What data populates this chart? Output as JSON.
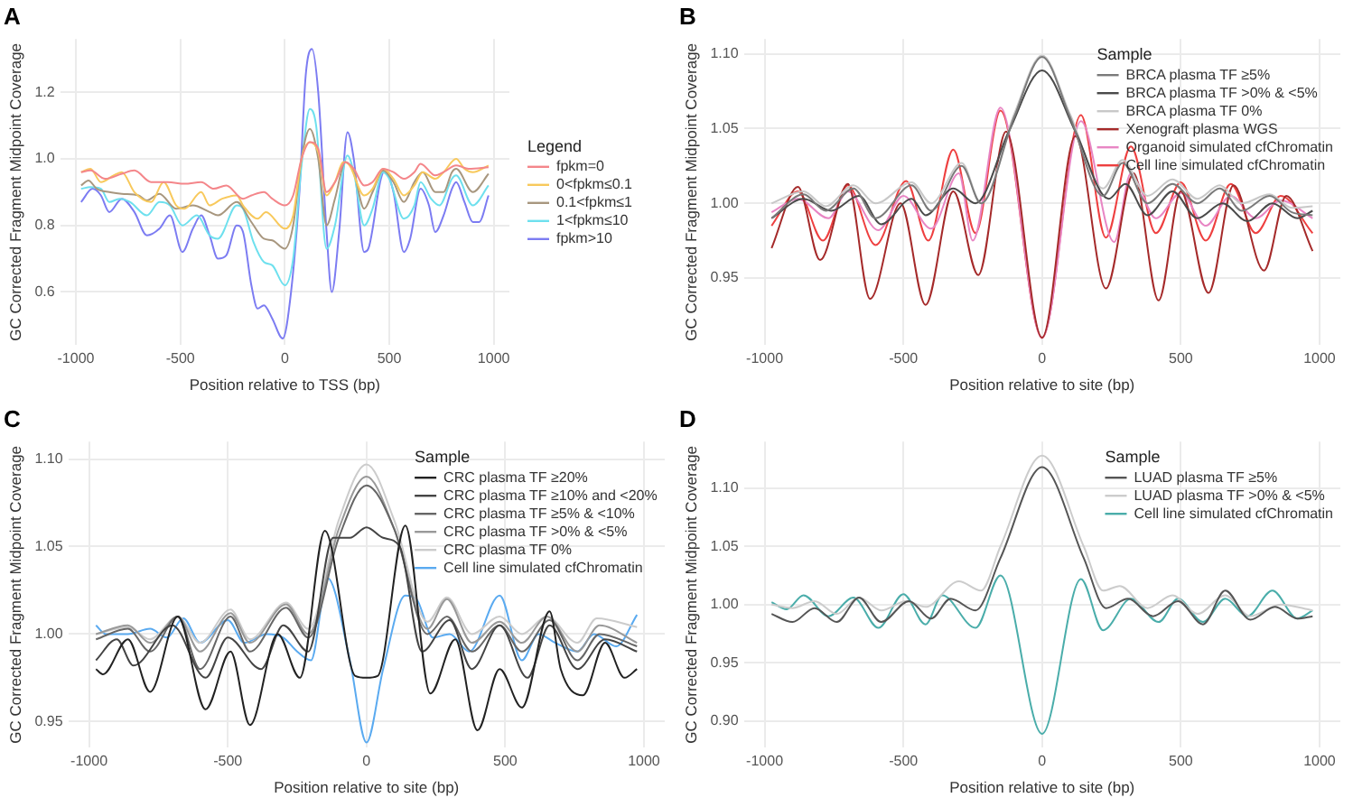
{
  "chart_data": [
    {
      "type": "line",
      "title": "A",
      "xlabel": "Position relative to TSS (bp)",
      "ylabel": "GC Corrected Fragment Midpoint Coverage",
      "legend_title": "Legend",
      "legend": "right",
      "grid": true,
      "marker": "none",
      "line_style": "solid",
      "xlim": [
        -1075,
        1075
      ],
      "xticks": [
        -1000,
        -500,
        0,
        500,
        1000
      ],
      "ylim": [
        0.44,
        1.36
      ],
      "yticks": [
        0.6,
        0.8,
        {
          "value": 1,
          "label": "1.0"
        },
        1.2
      ],
      "series": [
        {
          "name": "fpkm=0",
          "color": "#f4868a",
          "x": [
            -975,
            -930,
            -860,
            -780,
            -720,
            -640,
            -560,
            -480,
            -400,
            -340,
            -280,
            -200,
            -160,
            -100,
            -60,
            0,
            40,
            80,
            120,
            160,
            200,
            240,
            290,
            330,
            380,
            420,
            470,
            520,
            570,
            620,
            650,
            720,
            760,
            820,
            880,
            975
          ],
          "values": [
            0.96,
            0.965,
            0.94,
            0.955,
            0.965,
            0.93,
            0.93,
            0.925,
            0.93,
            0.91,
            0.92,
            0.88,
            0.89,
            0.9,
            0.88,
            0.86,
            0.89,
            1.0,
            1.05,
            1.03,
            0.9,
            0.93,
            0.99,
            0.97,
            0.92,
            0.93,
            0.97,
            0.96,
            0.94,
            0.96,
            0.985,
            0.95,
            0.96,
            0.98,
            0.97,
            0.975
          ]
        },
        {
          "name": "0<fpkm≤0.1",
          "color": "#f8c95c",
          "x": [
            -975,
            -930,
            -880,
            -820,
            -780,
            -720,
            -640,
            -580,
            -520,
            -480,
            -400,
            -360,
            -300,
            -230,
            -200,
            -130,
            -90,
            0,
            40,
            80,
            120,
            160,
            200,
            240,
            280,
            310,
            380,
            420,
            470,
            520,
            570,
            620,
            660,
            720,
            760,
            820,
            860,
            900,
            975
          ],
          "values": [
            0.96,
            0.97,
            0.93,
            0.95,
            0.96,
            0.9,
            0.87,
            0.93,
            0.86,
            0.85,
            0.9,
            0.86,
            0.88,
            0.89,
            0.86,
            0.82,
            0.84,
            0.79,
            0.83,
            1.0,
            1.05,
            1.02,
            0.89,
            0.93,
            0.99,
            0.98,
            0.89,
            0.91,
            0.97,
            0.94,
            0.89,
            0.92,
            0.96,
            0.94,
            0.96,
            1.0,
            0.97,
            0.96,
            0.98
          ]
        },
        {
          "name": "0.1<fpkm≤1",
          "color": "#a8977f",
          "x": [
            -975,
            -940,
            -900,
            -840,
            -780,
            -700,
            -660,
            -600,
            -520,
            -440,
            -360,
            -320,
            -230,
            -160,
            -100,
            -60,
            0,
            40,
            80,
            120,
            160,
            200,
            240,
            290,
            330,
            380,
            420,
            470,
            520,
            570,
            620,
            660,
            720,
            760,
            800,
            820,
            900,
            975
          ],
          "values": [
            0.92,
            0.935,
            0.91,
            0.9,
            0.895,
            0.89,
            0.875,
            0.895,
            0.85,
            0.86,
            0.84,
            0.83,
            0.87,
            0.81,
            0.76,
            0.755,
            0.73,
            0.8,
            1.0,
            1.09,
            1.0,
            0.8,
            0.88,
            0.99,
            0.96,
            0.85,
            0.9,
            0.965,
            0.93,
            0.87,
            0.93,
            0.96,
            0.9,
            0.9,
            0.96,
            0.97,
            0.9,
            0.955
          ]
        },
        {
          "name": "1<fpkm≤10",
          "color": "#6ee0ee",
          "x": [
            -975,
            -930,
            -880,
            -840,
            -790,
            -740,
            -660,
            -600,
            -550,
            -490,
            -420,
            -360,
            -320,
            -230,
            -200,
            -150,
            -100,
            -60,
            0,
            40,
            80,
            120,
            150,
            200,
            240,
            300,
            330,
            380,
            420,
            470,
            500,
            570,
            620,
            650,
            700,
            740,
            800,
            820,
            900,
            975
          ],
          "values": [
            0.91,
            0.915,
            0.91,
            0.87,
            0.88,
            0.87,
            0.83,
            0.87,
            0.86,
            0.8,
            0.83,
            0.77,
            0.76,
            0.86,
            0.85,
            0.75,
            0.69,
            0.68,
            0.62,
            0.7,
            0.98,
            1.15,
            1.1,
            0.73,
            0.8,
            1.01,
            0.96,
            0.8,
            0.85,
            0.96,
            0.94,
            0.82,
            0.86,
            0.93,
            0.88,
            0.86,
            0.94,
            0.95,
            0.86,
            0.92
          ]
        },
        {
          "name": "fpkm>10",
          "color": "#7c7cf2",
          "x": [
            -975,
            -920,
            -880,
            -840,
            -780,
            -720,
            -660,
            -600,
            -550,
            -490,
            -440,
            -400,
            -360,
            -320,
            -280,
            -230,
            -200,
            -160,
            -130,
            -100,
            -60,
            -10,
            30,
            70,
            100,
            130,
            160,
            200,
            225,
            260,
            300,
            330,
            380,
            400,
            460,
            480,
            520,
            570,
            600,
            650,
            690,
            720,
            760,
            800,
            820,
            860,
            900,
            930,
            975
          ],
          "values": [
            0.87,
            0.91,
            0.89,
            0.84,
            0.88,
            0.84,
            0.77,
            0.79,
            0.83,
            0.72,
            0.79,
            0.83,
            0.77,
            0.7,
            0.71,
            0.8,
            0.78,
            0.62,
            0.55,
            0.56,
            0.52,
            0.46,
            0.6,
            0.9,
            1.25,
            1.33,
            1.2,
            0.78,
            0.6,
            0.78,
            1.08,
            1.0,
            0.72,
            0.73,
            0.94,
            0.965,
            0.9,
            0.72,
            0.76,
            0.91,
            0.86,
            0.78,
            0.83,
            0.91,
            0.93,
            0.87,
            0.81,
            0.81,
            0.89
          ]
        }
      ]
    },
    {
      "type": "line",
      "title": "B",
      "xlabel": "Position relative to site (bp)",
      "ylabel": "GC Corrected Fragment Midpoint Coverage",
      "legend_title": "Sample",
      "legend": "top right",
      "grid": true,
      "marker": "none",
      "line_style": "solid",
      "xlim": [
        -1075,
        1075
      ],
      "xticks": [
        -1000,
        -500,
        0,
        500,
        1000
      ],
      "ylim": [
        0.905,
        1.11
      ],
      "yticks": [
        0.95,
        {
          "value": 1,
          "label": "1.00"
        },
        1.05,
        {
          "value": 1.1,
          "label": "1.10"
        }
      ],
      "series": [
        {
          "name": "BRCA plasma TF ≥5%",
          "color": "#7a7a7a",
          "x": [
            -975,
            -860,
            -780,
            -680,
            -600,
            -470,
            -400,
            -290,
            -220,
            -100,
            0,
            100,
            220,
            290,
            380,
            470,
            560,
            640,
            720,
            820,
            900,
            975
          ],
          "values": [
            0.99,
            1.006,
            0.995,
            1.01,
            0.99,
            1.012,
            0.995,
            1.025,
            1.0,
            1.058,
            1.098,
            1.058,
            1.005,
            1.027,
            1.0,
            1.013,
            1.0,
            1.01,
            0.995,
            1.005,
            0.994,
            0.992
          ]
        },
        {
          "name": "BRCA plasma TF >0% & <5%",
          "color": "#4a4a4a",
          "x": [
            -975,
            -860,
            -760,
            -660,
            -580,
            -470,
            -420,
            -320,
            -240,
            -120,
            0,
            120,
            240,
            300,
            380,
            470,
            560,
            650,
            740,
            830,
            920,
            975
          ],
          "values": [
            0.99,
            1.003,
            0.995,
            1.005,
            0.986,
            1.003,
            0.992,
            1.01,
            1.0,
            1.048,
            1.089,
            1.048,
            1.003,
            1.013,
            0.992,
            1.008,
            0.99,
            1.0,
            0.988,
            1.0,
            0.99,
            0.995
          ]
        },
        {
          "name": "BRCA plasma TF 0%",
          "color": "#c8c8c8",
          "x": [
            -975,
            -860,
            -780,
            -680,
            -600,
            -470,
            -400,
            -290,
            -220,
            -100,
            0,
            100,
            220,
            290,
            380,
            470,
            560,
            640,
            720,
            820,
            900,
            975
          ],
          "values": [
            1.0,
            1.008,
            0.998,
            1.012,
            1.0,
            1.014,
            1.0,
            1.027,
            1.0,
            1.06,
            1.099,
            1.06,
            1.01,
            1.029,
            1.005,
            1.016,
            1.003,
            1.012,
            1.0,
            1.006,
            0.997,
            0.998
          ]
        },
        {
          "name": "Xenograft plasma WGS",
          "color": "#a52a2a",
          "x": [
            -975,
            -880,
            -800,
            -700,
            -620,
            -510,
            -420,
            -320,
            -230,
            -130,
            0,
            120,
            230,
            330,
            420,
            500,
            600,
            690,
            800,
            880,
            975
          ],
          "values": [
            0.97,
            1.011,
            0.962,
            1.013,
            0.936,
            1.0,
            0.932,
            1.008,
            0.952,
            1.048,
            0.91,
            1.045,
            0.943,
            1.02,
            0.935,
            1.008,
            0.94,
            1.012,
            0.955,
            1.005,
            0.968
          ]
        },
        {
          "name": "Organoid simulated cfChromatin",
          "color": "#e886c4",
          "x": [
            -975,
            -880,
            -770,
            -700,
            -590,
            -500,
            -400,
            -300,
            -250,
            -150,
            0,
            140,
            260,
            320,
            410,
            500,
            590,
            680,
            770,
            860,
            975
          ],
          "values": [
            0.994,
            1.003,
            0.99,
            1.008,
            0.982,
            1.005,
            0.983,
            1.02,
            0.975,
            1.064,
            0.91,
            1.055,
            0.974,
            1.02,
            0.99,
            1.007,
            0.985,
            1.005,
            0.99,
            1.002,
            0.99
          ]
        },
        {
          "name": "Cell line simulated cfChromatin",
          "color": "#ee4040",
          "x": [
            -975,
            -880,
            -790,
            -700,
            -600,
            -490,
            -410,
            -320,
            -240,
            -150,
            0,
            140,
            230,
            320,
            410,
            500,
            590,
            680,
            770,
            860,
            975
          ],
          "values": [
            0.985,
            1.008,
            0.975,
            1.012,
            0.972,
            1.015,
            0.975,
            1.036,
            0.98,
            1.062,
            0.91,
            1.059,
            0.977,
            1.038,
            0.98,
            1.014,
            0.975,
            1.013,
            0.98,
            1.005,
            0.98
          ]
        }
      ]
    },
    {
      "type": "line",
      "title": "C",
      "xlabel": "Position relative to site (bp)",
      "ylabel": "GC Corrected Fragment Midpoint Coverage",
      "legend_title": "Sample",
      "legend": "top right",
      "grid": true,
      "marker": "none",
      "line_style": "solid",
      "xlim": [
        -1075,
        1075
      ],
      "xticks": [
        -1000,
        -500,
        0,
        500,
        1000
      ],
      "ylim": [
        0.935,
        1.11
      ],
      "yticks": [
        0.95,
        {
          "value": 1,
          "label": "1.00"
        },
        1.05,
        {
          "value": 1.1,
          "label": "1.10"
        }
      ],
      "series": [
        {
          "name": "CRC plasma TF ≥20%",
          "color": "#222222",
          "x": [
            -975,
            -950,
            -860,
            -780,
            -680,
            -580,
            -490,
            -420,
            -320,
            -240,
            -150,
            -40,
            0,
            40,
            140,
            230,
            320,
            400,
            480,
            560,
            660,
            700,
            780,
            860,
            930,
            975
          ],
          "values": [
            0.98,
            0.977,
            0.997,
            0.967,
            1.01,
            0.957,
            0.99,
            0.948,
            1.0,
            0.975,
            1.059,
            0.976,
            0.975,
            0.976,
            1.062,
            0.966,
            0.997,
            0.945,
            0.98,
            0.958,
            1.013,
            0.98,
            0.965,
            0.995,
            0.975,
            0.98
          ]
        },
        {
          "name": "CRC plasma TF ≥10% and <20%",
          "color": "#444444",
          "x": [
            -975,
            -900,
            -840,
            -700,
            -580,
            -500,
            -380,
            -300,
            -210,
            -120,
            -60,
            0,
            60,
            120,
            200,
            300,
            380,
            480,
            580,
            660,
            760,
            860,
            975
          ],
          "values": [
            0.985,
            0.997,
            0.982,
            1.005,
            0.975,
            0.998,
            0.98,
            1.005,
            0.99,
            1.055,
            1.055,
            1.061,
            1.055,
            1.05,
            0.99,
            1.008,
            0.98,
            1.005,
            0.975,
            1.005,
            0.98,
            0.997,
            0.99
          ]
        },
        {
          "name": "CRC plasma TF ≥5% & <10%",
          "color": "#666666",
          "x": [
            -975,
            -860,
            -780,
            -680,
            -600,
            -490,
            -420,
            -290,
            -210,
            -100,
            0,
            100,
            220,
            290,
            380,
            480,
            560,
            660,
            760,
            840,
            975
          ],
          "values": [
            0.997,
            1.003,
            0.99,
            1.01,
            0.98,
            1.01,
            0.99,
            1.015,
            0.998,
            1.055,
            1.085,
            1.06,
            1.0,
            1.01,
            0.99,
            1.005,
            0.99,
            1.008,
            0.985,
            1.0,
            0.993
          ]
        },
        {
          "name": "CRC plasma TF >0% & <5%",
          "color": "#999999",
          "x": [
            -975,
            -860,
            -780,
            -680,
            -600,
            -490,
            -420,
            -290,
            -210,
            -100,
            0,
            100,
            220,
            290,
            380,
            480,
            560,
            650,
            760,
            840,
            975
          ],
          "values": [
            1.0,
            1.005,
            0.995,
            1.01,
            0.99,
            1.012,
            0.995,
            1.017,
            1.0,
            1.06,
            1.09,
            1.06,
            1.003,
            1.02,
            0.995,
            1.007,
            0.995,
            1.01,
            0.99,
            1.005,
            0.995
          ]
        },
        {
          "name": "CRC plasma TF 0%",
          "color": "#cccccc",
          "x": [
            -975,
            -860,
            -780,
            -680,
            -600,
            -490,
            -420,
            -290,
            -210,
            -100,
            0,
            100,
            220,
            290,
            380,
            480,
            560,
            650,
            760,
            830,
            975
          ],
          "values": [
            1.0,
            1.004,
            0.997,
            1.01,
            0.995,
            1.014,
            0.997,
            1.018,
            1.003,
            1.065,
            1.097,
            1.065,
            1.007,
            1.021,
            1.0,
            1.01,
            1.0,
            1.01,
            0.995,
            1.009,
            1.004
          ]
        },
        {
          "name": "Cell line simulated cfChromatin",
          "color": "#5aaaf0",
          "x": [
            -975,
            -940,
            -860,
            -780,
            -720,
            -660,
            -600,
            -500,
            -440,
            -360,
            -300,
            -250,
            -200,
            -140,
            -60,
            0,
            60,
            140,
            180,
            240,
            300,
            370,
            480,
            560,
            620,
            680,
            760,
            820,
            900,
            975
          ],
          "values": [
            1.005,
            1.0,
            1.0,
            1.003,
            0.998,
            1.009,
            0.995,
            1.008,
            0.995,
            1.0,
            0.998,
            0.99,
            0.985,
            1.032,
            0.985,
            0.938,
            0.98,
            1.022,
            1.02,
            0.998,
            1.0,
            0.99,
            1.022,
            0.985,
            1.0,
            0.995,
            0.99,
            1.0,
            0.993,
            1.011
          ]
        }
      ]
    },
    {
      "type": "line",
      "title": "D",
      "xlabel": "Position relative to site (bp)",
      "ylabel": "GC Corrected Fragment Midpoint Coverage",
      "legend_title": "Sample",
      "legend": "top right",
      "grid": true,
      "marker": "none",
      "line_style": "solid",
      "xlim": [
        -1075,
        1075
      ],
      "xticks": [
        -1000,
        -500,
        0,
        500,
        1000
      ],
      "ylim": [
        0.877,
        1.14
      ],
      "yticks": [
        {
          "value": 0.9,
          "label": "0.90"
        },
        0.95,
        {
          "value": 1,
          "label": "1.00"
        },
        1.05,
        {
          "value": 1.1,
          "label": "1.10"
        }
      ],
      "series": [
        {
          "name": "LUAD plasma TF ≥5%",
          "color": "#555555",
          "x": [
            -975,
            -900,
            -820,
            -740,
            -660,
            -580,
            -480,
            -400,
            -330,
            -240,
            -150,
            0,
            150,
            230,
            310,
            400,
            490,
            580,
            660,
            750,
            840,
            920,
            975
          ],
          "values": [
            0.992,
            0.985,
            0.997,
            0.985,
            1.006,
            0.985,
            1.003,
            0.988,
            1.005,
            0.995,
            1.04,
            1.118,
            1.04,
            0.997,
            1.005,
            0.99,
            1.003,
            0.983,
            1.012,
            0.987,
            0.998,
            0.988,
            0.99
          ]
        },
        {
          "name": "LUAD plasma TF >0% & <5%",
          "color": "#cccccc",
          "x": [
            -975,
            -900,
            -820,
            -740,
            -660,
            -580,
            -490,
            -420,
            -300,
            -220,
            -150,
            0,
            150,
            220,
            280,
            380,
            470,
            560,
            660,
            750,
            860,
            975
          ],
          "values": [
            1.0,
            0.997,
            1.003,
            0.992,
            1.006,
            0.995,
            1.003,
            0.998,
            1.02,
            1.012,
            1.05,
            1.128,
            1.05,
            1.012,
            1.016,
            0.997,
            1.008,
            0.992,
            1.008,
            0.99,
            1.0,
            0.995
          ]
        },
        {
          "name": "Cell line simulated cfChromatin",
          "color": "#4aadaa",
          "x": [
            -975,
            -920,
            -860,
            -770,
            -680,
            -590,
            -500,
            -420,
            -360,
            -240,
            -150,
            0,
            140,
            220,
            320,
            420,
            490,
            580,
            660,
            740,
            830,
            920,
            975
          ],
          "values": [
            1.002,
            0.996,
            1.008,
            0.99,
            1.006,
            0.98,
            1.009,
            0.983,
            1.008,
            0.98,
            1.025,
            0.889,
            1.022,
            0.978,
            1.005,
            0.985,
            1.005,
            0.985,
            1.005,
            0.99,
            1.012,
            0.988,
            0.995
          ]
        }
      ]
    }
  ]
}
